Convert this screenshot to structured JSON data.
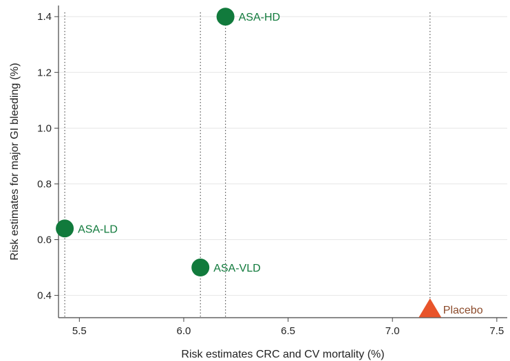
{
  "chart_data": {
    "type": "scatter",
    "title": "",
    "xlabel": "Risk estimates CRC and CV mortality (%)",
    "ylabel": "Risk estimates for major GI bleeding (%)",
    "xlim": [
      5.4,
      7.55
    ],
    "ylim": [
      0.32,
      1.44
    ],
    "xticks": [
      "5.5",
      "6.0",
      "6.5",
      "7.0",
      "7.5"
    ],
    "yticks": [
      "0.4",
      "0.6",
      "0.8",
      "1.0",
      "1.2",
      "1.4"
    ],
    "grid": "horizontal",
    "points": [
      {
        "label": "ASA-HD",
        "x": 6.2,
        "y": 1.4,
        "marker": "circle",
        "color": "#117a3c",
        "label_color": "#117a3c"
      },
      {
        "label": "ASA-LD",
        "x": 5.43,
        "y": 0.64,
        "marker": "circle",
        "color": "#117a3c",
        "label_color": "#117a3c"
      },
      {
        "label": "ASA-VLD",
        "x": 6.08,
        "y": 0.5,
        "marker": "circle",
        "color": "#117a3c",
        "label_color": "#117a3c"
      },
      {
        "label": "Placebo",
        "x": 7.18,
        "y": 0.35,
        "marker": "triangle",
        "color": "#e8542a",
        "label_color": "#8b4a2a"
      }
    ]
  }
}
